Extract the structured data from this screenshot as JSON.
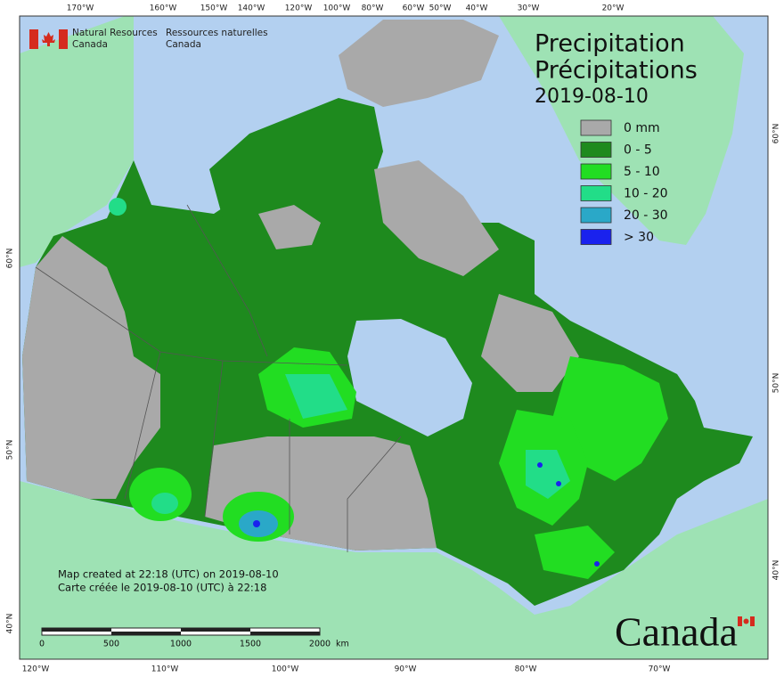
{
  "agency": {
    "en_line1": "Natural Resources",
    "en_line2": "Canada",
    "fr_line1": "Ressources naturelles",
    "fr_line2": "Canada"
  },
  "title": {
    "en": "Precipitation",
    "fr": "Précipitations",
    "date": "2019-08-10"
  },
  "legend": [
    {
      "label": "0 mm",
      "color": "#a9a9a9"
    },
    {
      "label": "0 - 5",
      "color": "#1e8a1e"
    },
    {
      "label": "5 - 10",
      "color": "#22dd22"
    },
    {
      "label": "10 - 20",
      "color": "#22dd88"
    },
    {
      "label": "20 - 30",
      "color": "#2aa8c8"
    },
    {
      "label": "> 30",
      "color": "#1a22ee"
    }
  ],
  "graticule": {
    "top": [
      "170°W",
      "160°W",
      "150°W",
      "140°W",
      "120°W",
      "100°W",
      "80°W",
      "60°W",
      "50°W",
      "40°W",
      "30°W",
      "20°W"
    ],
    "bottom": [
      "120°W",
      "110°W",
      "100°W",
      "90°W",
      "80°W",
      "70°W"
    ],
    "left": [
      "60°N",
      "50°N",
      "40°N"
    ],
    "right": [
      "60°N",
      "50°N",
      "40°N"
    ]
  },
  "credits": [
    "Map created at 22:18 (UTC) on 2019-08-10",
    "Carte créée le 2019-08-10 (UTC) à 22:18"
  ],
  "scale_bar": {
    "labels": [
      "0",
      "500",
      "1000",
      "1500",
      "2000"
    ],
    "unit": "km"
  },
  "wordmark": "Canada"
}
